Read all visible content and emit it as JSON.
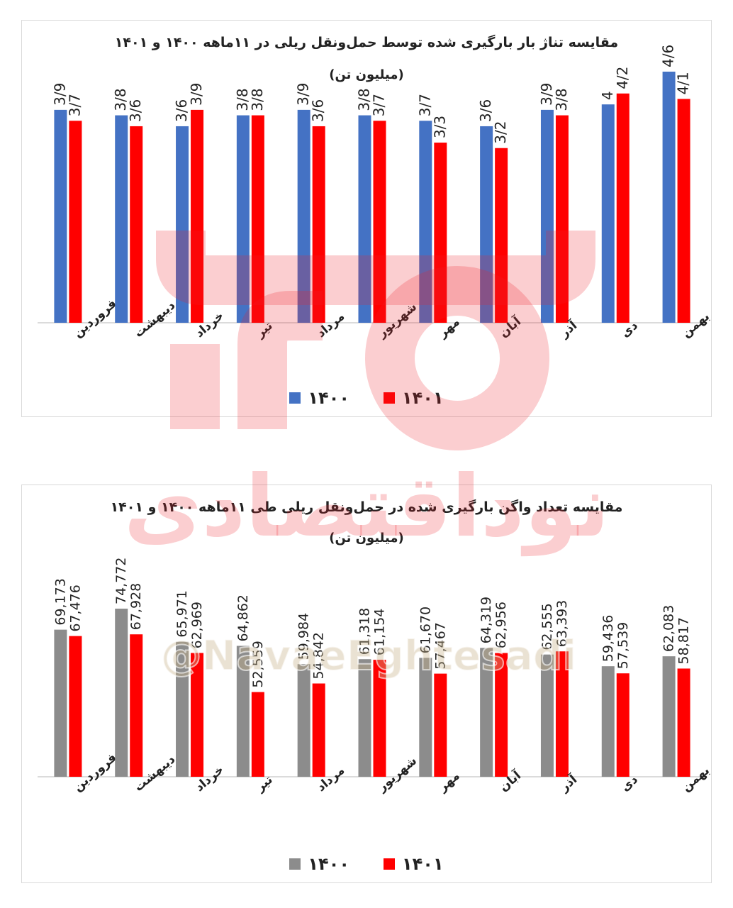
{
  "colors": {
    "blue": "#4472c4",
    "red": "#ff0000",
    "gray": "#8c8c8c",
    "watermark": "#eb1e28"
  },
  "watermark": {
    "text": "نوداقتصادی",
    "handle": "@NavaeEghtesadi"
  },
  "chart_data": [
    {
      "type": "bar",
      "title": "مقایسه تناژ بار بارگیری شده توسط حمل‌ونقل ریلی در ۱۱ماهه ۱۴۰۰ و ۱۴۰۱",
      "subtitle": "(میلیون تن)",
      "categories": [
        "فروردین",
        "اردیبهشت",
        "خرداد",
        "تیر",
        "مرداد",
        "شهریور",
        "مهر",
        "آبان",
        "آذر",
        "دی",
        "بهمن"
      ],
      "series": [
        {
          "name": "۱۴۰۰",
          "color": "#4472c4",
          "values": [
            3.9,
            3.8,
            3.6,
            3.8,
            3.9,
            3.8,
            3.7,
            3.6,
            3.9,
            4.0,
            4.6
          ],
          "labels": [
            "3/9",
            "3/8",
            "3/6",
            "3/8",
            "3/9",
            "3/8",
            "3/7",
            "3/6",
            "3/9",
            "4",
            "4/6"
          ]
        },
        {
          "name": "۱۴۰۱",
          "color": "#ff0000",
          "values": [
            3.7,
            3.6,
            3.9,
            3.8,
            3.6,
            3.7,
            3.3,
            3.2,
            3.8,
            4.2,
            4.1
          ],
          "labels": [
            "3/7",
            "3/6",
            "3/9",
            "3/8",
            "3/6",
            "3/7",
            "3/3",
            "3/2",
            "3/8",
            "4/2",
            "4/1"
          ]
        }
      ],
      "grid": false,
      "legend_position": "bottom"
    },
    {
      "type": "bar",
      "title": "مقایسه تعداد واگن بارگیری شده در حمل‌ونقل ریلی طی ۱۱ماهه ۱۴۰۰ و ۱۴۰۱",
      "subtitle": "(میلیون تن)",
      "categories": [
        "فروردین",
        "اردیبهشت",
        "خرداد",
        "تیر",
        "مرداد",
        "شهریور",
        "مهر",
        "آبان",
        "آذر",
        "دی",
        "بهمن"
      ],
      "series": [
        {
          "name": "۱۴۰۰",
          "color": "#8c8c8c",
          "values": [
            69173,
            74772,
            65971,
            64862,
            59984,
            61318,
            61670,
            64319,
            62555,
            59436,
            62083
          ],
          "labels": [
            "69,173",
            "74,772",
            "65,971",
            "64,862",
            "59,984",
            "61,318",
            "61,670",
            "64,319",
            "62,555",
            "59,436",
            "62,083"
          ]
        },
        {
          "name": "۱۴۰۱",
          "color": "#ff0000",
          "values": [
            67476,
            67928,
            62969,
            52559,
            54842,
            61154,
            57467,
            62956,
            63393,
            57539,
            58817
          ],
          "labels": [
            "67,476",
            "67,928",
            "62,969",
            "52,559",
            "54,842",
            "61,154",
            "57,467",
            "62,956",
            "63,393",
            "57,539",
            "58,817"
          ]
        }
      ],
      "grid": false,
      "legend_position": "bottom"
    }
  ]
}
